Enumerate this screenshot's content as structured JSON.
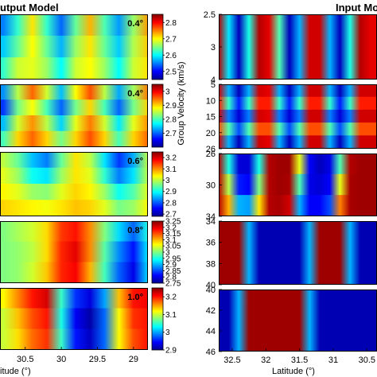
{
  "headings": {
    "left": "utput Model",
    "right": "Input Mo"
  },
  "colorbar_label": "Group Velocity (km/s)",
  "colormap": [
    "#00008f",
    "#0000ff",
    "#0080ff",
    "#00ffff",
    "#80ff80",
    "#ffff00",
    "#ff8000",
    "#ff0000",
    "#800000"
  ],
  "left_x_axis": {
    "label": "itude (°)",
    "reversed": true,
    "range": [
      30.85,
      28.8
    ],
    "tick_labels": [
      "30.5",
      "30",
      "29.5",
      "29"
    ]
  },
  "right_x_axis": {
    "label": "Latitude (°)",
    "reversed": true,
    "range": [
      32.7,
      30.35
    ],
    "tick_labels": [
      "32.5",
      "32",
      "31.5",
      "31",
      "30.5"
    ]
  },
  "chart_data": [
    {
      "type": "heatmap",
      "panel": "output",
      "annotation": "0.4°",
      "colorbar": {
        "range": [
          2.45,
          2.85
        ],
        "tick_labels": [
          "2.8",
          "2.7",
          "2.6",
          "2.5"
        ]
      },
      "x": [
        30.8,
        30.6,
        30.4,
        30.2,
        30.0,
        29.8,
        29.6,
        29.4,
        29.2,
        29.0,
        28.8
      ],
      "rows": [
        [
          2.55,
          2.62,
          2.71,
          2.62,
          2.54,
          2.64,
          2.73,
          2.63,
          2.56,
          2.66,
          2.74
        ],
        [
          2.58,
          2.64,
          2.7,
          2.64,
          2.57,
          2.66,
          2.71,
          2.64,
          2.58,
          2.67,
          2.72
        ],
        [
          2.62,
          2.68,
          2.69,
          2.66,
          2.6,
          2.68,
          2.7,
          2.66,
          2.6,
          2.68,
          2.71
        ]
      ]
    },
    {
      "type": "heatmap",
      "panel": "output",
      "annotation": "0.4°",
      "colorbar": {
        "range": [
          2.6,
          3.05
        ],
        "tick_labels": [
          "3",
          "2.9",
          "2.8",
          "2.7"
        ]
      },
      "x": [
        30.8,
        30.6,
        30.4,
        30.2,
        30.0,
        29.8,
        29.6,
        29.4,
        29.2,
        29.0,
        28.8
      ],
      "rows": [
        [
          2.72,
          2.85,
          2.95,
          2.86,
          2.74,
          2.88,
          2.96,
          2.85,
          2.73,
          2.84,
          2.94
        ],
        [
          2.68,
          2.82,
          2.88,
          2.8,
          2.7,
          2.82,
          2.9,
          2.8,
          2.7,
          2.82,
          2.9
        ],
        [
          2.74,
          2.86,
          2.93,
          2.85,
          2.75,
          2.87,
          2.94,
          2.86,
          2.76,
          2.87,
          2.93
        ],
        [
          2.8,
          2.9,
          2.95,
          2.9,
          2.82,
          2.9,
          2.96,
          2.9,
          2.8,
          2.9,
          2.95
        ]
      ]
    },
    {
      "type": "heatmap",
      "panel": "output",
      "annotation": "0.6°",
      "colorbar": {
        "range": [
          2.68,
          3.25
        ],
        "tick_labels": [
          "3.2",
          "3.1",
          "3",
          "2.9",
          "2.8",
          "2.7"
        ]
      },
      "x": [
        30.8,
        30.6,
        30.4,
        30.2,
        30.0,
        29.8,
        29.6,
        29.4,
        29.2,
        29.0,
        28.8
      ],
      "rows": [
        [
          3.0,
          2.95,
          2.86,
          2.82,
          2.95,
          3.05,
          3.0,
          2.88,
          2.78,
          2.85,
          3.0
        ],
        [
          3.02,
          2.98,
          2.9,
          2.88,
          2.98,
          3.05,
          3.02,
          2.92,
          2.82,
          2.88,
          3.0
        ],
        [
          3.04,
          3.02,
          2.98,
          2.97,
          3.02,
          3.06,
          3.04,
          2.98,
          2.9,
          2.94,
          3.02
        ],
        [
          3.06,
          3.05,
          3.04,
          3.03,
          3.05,
          3.07,
          3.06,
          3.02,
          2.96,
          2.98,
          3.04
        ]
      ]
    },
    {
      "type": "heatmap",
      "panel": "output",
      "annotation": "0.8°",
      "colorbar": {
        "range": [
          2.75,
          3.25
        ],
        "tick_labels": [
          "3.25",
          "3.2",
          "3.15",
          "3.1",
          "3.05",
          "3",
          "2.95",
          "2.9",
          "2.85",
          "2.8",
          "2.75"
        ]
      },
      "x": [
        30.8,
        30.6,
        30.4,
        30.2,
        30.0,
        29.8,
        29.6,
        29.4,
        29.2,
        29.0,
        28.8
      ],
      "rows": [
        [
          3.0,
          3.02,
          3.04,
          3.08,
          3.16,
          3.18,
          3.12,
          3.0,
          2.92,
          2.86,
          2.95
        ],
        [
          3.0,
          3.01,
          3.03,
          3.08,
          3.17,
          3.2,
          3.12,
          2.98,
          2.88,
          2.82,
          2.93
        ],
        [
          3.0,
          3.01,
          3.04,
          3.09,
          3.17,
          3.19,
          3.1,
          2.97,
          2.86,
          2.8,
          2.92
        ]
      ]
    },
    {
      "type": "heatmap",
      "panel": "output",
      "annotation": "1.0°",
      "colorbar": {
        "range": [
          2.9,
          3.25
        ],
        "tick_labels": [
          "3.2",
          "3.1",
          "3",
          "2.9"
        ]
      },
      "x": [
        30.8,
        30.6,
        30.4,
        30.2,
        30.0,
        29.8,
        29.6,
        29.4,
        29.2,
        29.0,
        28.8
      ],
      "rows": [
        [
          3.12,
          3.16,
          3.2,
          3.22,
          3.05,
          2.96,
          2.93,
          3.0,
          3.14,
          3.2,
          3.21
        ],
        [
          3.1,
          3.14,
          3.18,
          3.2,
          3.04,
          2.94,
          2.91,
          2.98,
          3.12,
          3.19,
          3.2
        ],
        [
          3.1,
          3.13,
          3.17,
          3.19,
          3.05,
          2.95,
          2.92,
          2.98,
          3.12,
          3.18,
          3.2
        ]
      ]
    },
    {
      "type": "heatmap",
      "panel": "input",
      "y_tick_labels": [
        "2.5",
        "3",
        "4"
      ],
      "x": [
        32.7,
        32.55,
        32.4,
        32.25,
        32.1,
        31.95,
        31.8,
        31.65,
        31.5,
        31.35,
        31.2,
        31.05,
        30.9,
        30.75,
        30.6,
        30.45
      ],
      "values": [
        0.95,
        0.35,
        0.05,
        0.4,
        0.95,
        0.9,
        0.45,
        0.05,
        0.3,
        0.92,
        0.92,
        0.3,
        0.05,
        0.4,
        0.95,
        0.9
      ]
    },
    {
      "type": "heatmap",
      "panel": "input",
      "y_tick_labels": [
        "5",
        "10",
        "15",
        "20",
        "26"
      ],
      "x": [
        32.7,
        32.55,
        32.4,
        32.25,
        32.1,
        31.95,
        31.8,
        31.65,
        31.5,
        31.35,
        31.2,
        31.05,
        30.9,
        30.75,
        30.6,
        30.45
      ],
      "rows": [
        [
          0.92,
          0.3,
          0.05,
          0.3,
          0.92,
          0.9,
          0.3,
          0.05,
          0.3,
          0.92,
          0.92,
          0.3,
          0.05,
          0.3,
          0.92,
          0.92
        ],
        [
          0.85,
          0.42,
          0.15,
          0.42,
          0.85,
          0.85,
          0.42,
          0.15,
          0.42,
          0.85,
          0.85,
          0.42,
          0.15,
          0.42,
          0.85,
          0.85
        ],
        [
          0.92,
          0.25,
          0.08,
          0.25,
          0.92,
          0.9,
          0.25,
          0.08,
          0.25,
          0.92,
          0.92,
          0.25,
          0.08,
          0.25,
          0.92,
          0.92
        ],
        [
          0.8,
          0.45,
          0.2,
          0.45,
          0.8,
          0.8,
          0.45,
          0.2,
          0.45,
          0.8,
          0.8,
          0.45,
          0.2,
          0.45,
          0.8,
          0.8
        ],
        [
          0.92,
          0.3,
          0.05,
          0.3,
          0.92,
          0.9,
          0.3,
          0.05,
          0.3,
          0.92,
          0.92,
          0.3,
          0.05,
          0.3,
          0.92,
          0.92
        ]
      ]
    },
    {
      "type": "heatmap",
      "panel": "input",
      "y_tick_labels": [
        "26",
        "30",
        "34"
      ],
      "x": [
        32.7,
        32.55,
        32.4,
        32.25,
        32.1,
        31.95,
        31.8,
        31.65,
        31.5,
        31.35,
        31.2,
        31.05,
        30.9,
        30.75,
        30.6,
        30.45
      ],
      "rows": [
        [
          0.95,
          0.4,
          0.08,
          0.08,
          0.4,
          0.95,
          0.97,
          0.97,
          0.6,
          0.12,
          0.05,
          0.1,
          0.45,
          0.95,
          0.97,
          0.97
        ],
        [
          0.95,
          0.55,
          0.15,
          0.12,
          0.5,
          0.95,
          0.97,
          0.96,
          0.45,
          0.1,
          0.08,
          0.12,
          0.6,
          0.96,
          0.97,
          0.97
        ],
        [
          0.95,
          0.7,
          0.3,
          0.28,
          0.65,
          0.95,
          0.96,
          0.92,
          0.3,
          0.12,
          0.12,
          0.2,
          0.75,
          0.96,
          0.97,
          0.97
        ]
      ]
    },
    {
      "type": "heatmap",
      "panel": "input",
      "y_tick_labels": [
        "34",
        "36",
        "38",
        "40"
      ],
      "x": [
        32.7,
        32.55,
        32.4,
        32.25,
        32.1,
        31.95,
        31.8,
        31.65,
        31.5,
        31.35,
        31.2,
        31.05,
        30.9,
        30.75,
        30.6,
        30.45
      ],
      "values": [
        0.97,
        0.97,
        0.97,
        0.3,
        0.04,
        0.04,
        0.04,
        0.04,
        0.04,
        0.3,
        0.97,
        0.97,
        0.97,
        0.3,
        0.04,
        0.04
      ]
    },
    {
      "type": "heatmap",
      "panel": "input",
      "y_tick_labels": [
        "40",
        "42",
        "44",
        "46"
      ],
      "x": [
        32.7,
        32.55,
        32.4,
        32.25,
        32.1,
        31.95,
        31.8,
        31.65,
        31.5,
        31.35,
        31.2,
        31.05,
        30.9,
        30.75,
        30.6,
        30.45
      ],
      "values": [
        0.04,
        0.04,
        0.3,
        0.97,
        0.97,
        0.97,
        0.97,
        0.97,
        0.97,
        0.3,
        0.04,
        0.04,
        0.04,
        0.04,
        0.04,
        0.04
      ]
    }
  ]
}
